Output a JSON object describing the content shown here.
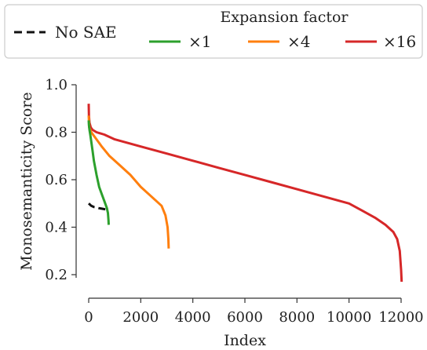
{
  "legend": {
    "no_sae_label": "No SAE",
    "title": "Expansion factor",
    "x1_label": "×1",
    "x4_label": "×4",
    "x16_label": "×16"
  },
  "chart_data": {
    "type": "line",
    "xlabel": "Index",
    "ylabel": "Monosemanticity Score",
    "xlim": [
      -400,
      12200
    ],
    "ylim": [
      0.16,
      1.0
    ],
    "xticks": [
      "0",
      "2000",
      "4000",
      "6000",
      "8000",
      "10000",
      "12000"
    ],
    "xtick_values": [
      0,
      2000,
      4000,
      6000,
      8000,
      10000,
      12000
    ],
    "yticks": [
      "0.2",
      "0.4",
      "0.6",
      "0.8",
      "1.0"
    ],
    "ytick_values": [
      0.2,
      0.4,
      0.6,
      0.8,
      1.0
    ],
    "grid": false,
    "legend_position": "top",
    "series": [
      {
        "name": "No SAE",
        "color": "#111111",
        "dash": true,
        "x": [
          0,
          50,
          100,
          200,
          300,
          400,
          500,
          600,
          700,
          768
        ],
        "y": [
          0.5,
          0.495,
          0.49,
          0.485,
          0.483,
          0.48,
          0.478,
          0.476,
          0.475,
          0.473
        ]
      },
      {
        "name": "×1",
        "color": "#2ca02c",
        "dash": false,
        "x": [
          0,
          10,
          30,
          60,
          100,
          150,
          200,
          300,
          400,
          500,
          600,
          700,
          740,
          760,
          768
        ],
        "y": [
          0.85,
          0.83,
          0.81,
          0.79,
          0.76,
          0.72,
          0.68,
          0.62,
          0.57,
          0.54,
          0.51,
          0.48,
          0.46,
          0.43,
          0.41
        ]
      },
      {
        "name": "×4",
        "color": "#ff7f0e",
        "dash": false,
        "x": [
          0,
          20,
          100,
          300,
          500,
          800,
          1200,
          1600,
          2000,
          2400,
          2600,
          2800,
          2950,
          3030,
          3060,
          3072
        ],
        "y": [
          0.87,
          0.82,
          0.8,
          0.77,
          0.74,
          0.7,
          0.66,
          0.62,
          0.57,
          0.53,
          0.51,
          0.49,
          0.45,
          0.4,
          0.35,
          0.31
        ]
      },
      {
        "name": "×16",
        "color": "#d62728",
        "dash": false,
        "x": [
          0,
          10,
          30,
          80,
          150,
          300,
          600,
          1000,
          2000,
          3000,
          4000,
          5000,
          6000,
          7000,
          8000,
          9000,
          10000,
          10500,
          11000,
          11400,
          11700,
          11850,
          11950,
          12000,
          12020
        ],
        "y": [
          0.92,
          0.87,
          0.84,
          0.82,
          0.81,
          0.8,
          0.79,
          0.77,
          0.74,
          0.71,
          0.68,
          0.65,
          0.62,
          0.59,
          0.56,
          0.53,
          0.5,
          0.47,
          0.44,
          0.41,
          0.38,
          0.35,
          0.3,
          0.22,
          0.17
        ]
      }
    ]
  }
}
